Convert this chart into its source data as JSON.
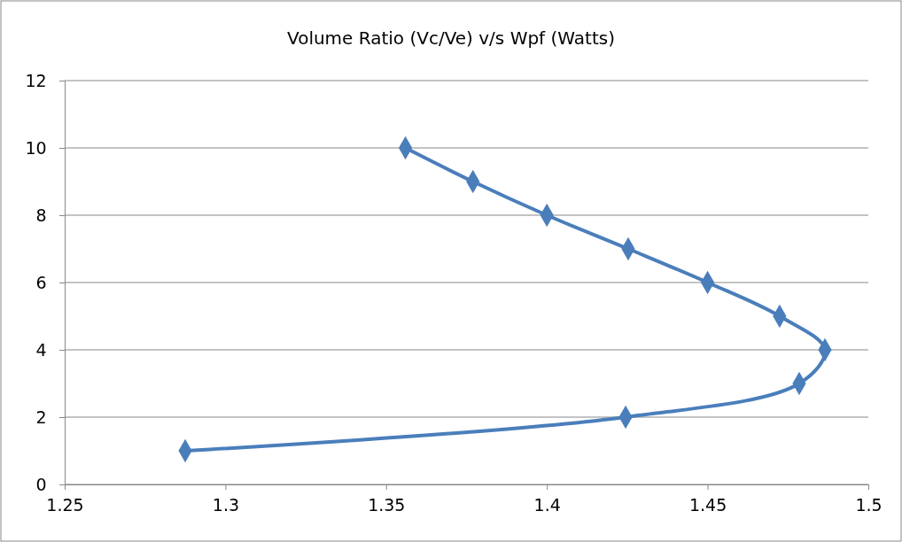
{
  "chart_data": {
    "type": "line",
    "title": "Volume Ratio (Vc/Ve) v/s Wpf (Watts)",
    "x": [
      1.2875,
      1.4245,
      1.4785,
      1.4865,
      1.4724,
      1.45,
      1.4253,
      1.4,
      1.377,
      1.356
    ],
    "series": [
      {
        "color": "#4a7ebb",
        "values": [
          1,
          2,
          3,
          4,
          5,
          6,
          7,
          8,
          9,
          10
        ]
      }
    ],
    "xlim": [
      1.25,
      1.5
    ],
    "xticks": [
      1.25,
      1.3,
      1.35,
      1.4,
      1.45,
      1.5
    ],
    "ylim": [
      0,
      12
    ],
    "yticks": [
      0,
      2,
      4,
      6,
      8,
      10,
      12
    ],
    "grid": "y",
    "marker": "diamond",
    "line_style": "solid"
  }
}
